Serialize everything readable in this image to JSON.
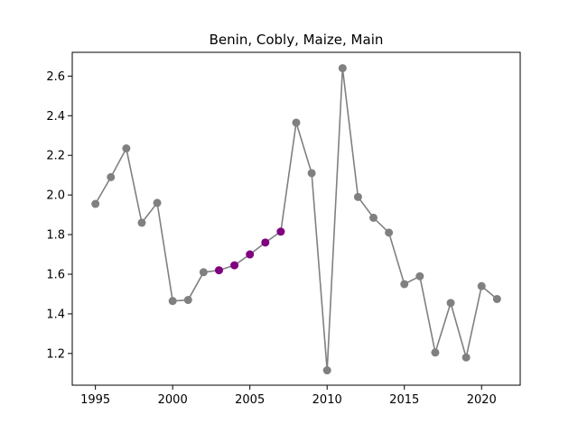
{
  "chart_data": {
    "type": "line",
    "title": "Benin, Cobly, Maize, Main",
    "xlabel": "",
    "ylabel": "",
    "xlim": [
      1993.5,
      2022.5
    ],
    "ylim": [
      1.04,
      2.72
    ],
    "xticks": [
      1995,
      2000,
      2005,
      2010,
      2015,
      2020
    ],
    "yticks": [
      1.2,
      1.4,
      1.6,
      1.8,
      2.0,
      2.2,
      2.4,
      2.6
    ],
    "ytick_labels": [
      "1.2",
      "1.4",
      "1.6",
      "1.8",
      "2.0",
      "2.2",
      "2.4",
      "2.6"
    ],
    "grid": false,
    "legend": "none",
    "series": [
      {
        "color": "#808080",
        "x": [
          1995,
          1996,
          1997,
          1998,
          1999,
          2000,
          2001,
          2002,
          2003,
          2004,
          2005,
          2006,
          2007,
          2008,
          2009,
          2010,
          2011,
          2012,
          2013,
          2014,
          2015,
          2016,
          2017,
          2018,
          2019,
          2020,
          2021
        ],
        "values": [
          1.955,
          2.09,
          2.235,
          1.86,
          1.96,
          1.465,
          1.47,
          1.61,
          1.62,
          1.645,
          1.7,
          1.76,
          1.815,
          2.365,
          2.11,
          1.115,
          2.64,
          1.99,
          1.885,
          1.81,
          1.55,
          1.59,
          1.205,
          1.455,
          1.18,
          1.54,
          1.475
        ],
        "highlight_color": "#800080",
        "highlight_x": [
          2003,
          2004,
          2005,
          2006,
          2007
        ]
      }
    ]
  }
}
